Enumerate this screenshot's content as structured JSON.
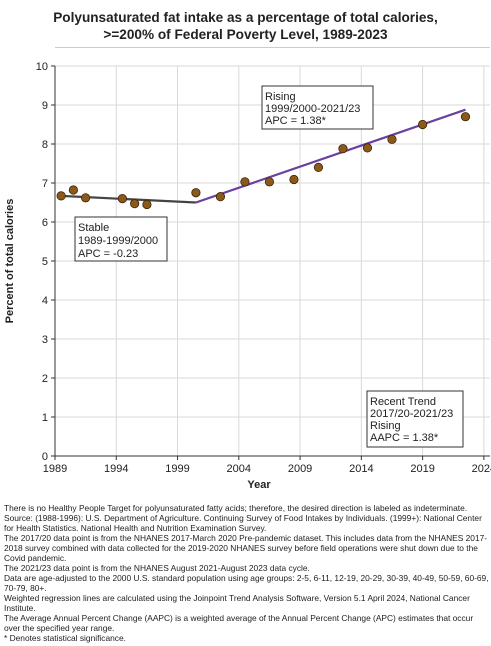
{
  "chart_data": {
    "type": "scatter",
    "title_line1": "Polyunsaturated fat intake as a percentage of total calories,",
    "title_line2": ">=200% of Federal Poverty Level,  1989-2023",
    "xlabel": "Year",
    "ylabel": "Percent of total calories",
    "xlim": [
      1989,
      2024.5
    ],
    "ylim": [
      0,
      10
    ],
    "xticks": [
      1989,
      1994,
      1999,
      2004,
      2009,
      2014,
      2019,
      2024
    ],
    "yticks": [
      0,
      1,
      2,
      3,
      4,
      5,
      6,
      7,
      8,
      9,
      10
    ],
    "grid": true,
    "points": [
      {
        "x": 1989.5,
        "y": 6.67
      },
      {
        "x": 1990.5,
        "y": 6.82
      },
      {
        "x": 1991.5,
        "y": 6.62
      },
      {
        "x": 1994.5,
        "y": 6.6
      },
      {
        "x": 1995.5,
        "y": 6.47
      },
      {
        "x": 1996.5,
        "y": 6.45
      },
      {
        "x": 2000.5,
        "y": 6.75
      },
      {
        "x": 2002.5,
        "y": 6.65
      },
      {
        "x": 2004.5,
        "y": 7.03
      },
      {
        "x": 2006.5,
        "y": 7.03
      },
      {
        "x": 2008.5,
        "y": 7.09
      },
      {
        "x": 2010.5,
        "y": 7.4
      },
      {
        "x": 2012.5,
        "y": 7.88
      },
      {
        "x": 2014.5,
        "y": 7.9
      },
      {
        "x": 2016.5,
        "y": 8.12
      },
      {
        "x": 2019,
        "y": 8.5
      },
      {
        "x": 2022.5,
        "y": 8.7
      }
    ],
    "trend_segments": [
      {
        "name": "Stable",
        "color": "#444444",
        "x": [
          1989.5,
          2000.5
        ],
        "y": [
          6.67,
          6.5
        ]
      },
      {
        "name": "Rising",
        "color": "#6b3fa0",
        "x": [
          2000.5,
          2022.5
        ],
        "y": [
          6.5,
          8.88
        ]
      }
    ],
    "point_color": "#8b5a1a",
    "point_stroke": "#3a2508",
    "annotations": [
      {
        "lines": [
          "Stable",
          "1989-1999/2000",
          "APC = -0.23"
        ]
      },
      {
        "lines": [
          "Rising",
          "1999/2000-2021/23",
          "APC =  1.38*"
        ]
      },
      {
        "lines": [
          "Recent Trend",
          "2017/20-2021/23",
          "Rising",
          "AAPC =  1.38*"
        ]
      }
    ]
  },
  "notes": [
    "There is no Healthy People Target for polyunsaturated fatty acids; therefore, the desired direction is labeled as indeterminate.",
    "Source: (1988-1996): U.S. Department of Agriculture. Continuing Survey of Food Intakes by Individuals. (1999+): National Center for Health Statistics. National Health and Nutrition Examination Survey.",
    "The 2017/20 data point is from the NHANES 2017-March 2020 Pre-pandemic dataset. This includes data from the NHANES 2017-2018 survey combined with data collected for the 2019-2020 NHANES survey before field operations were shut down due to the Covid pandemic.",
    "The 2021/23 data point is from the NHANES August 2021-August 2023 data cycle.",
    "Data are age-adjusted to the 2000 U.S. standard population using age groups: 2-5, 6-11, 12-19, 20-29, 30-39, 40-49, 50-59, 60-69, 70-79, 80+.",
    "Weighted regression lines are calculated using the Joinpoint Trend Analysis Software, Version 5.1 April 2024, National Cancer Institute.",
    "The Average Annual Percent Change (AAPC) is a weighted average of the Annual Percent Change (APC) estimates that occur over the specified year range.",
    "* Denotes statistical significance."
  ]
}
